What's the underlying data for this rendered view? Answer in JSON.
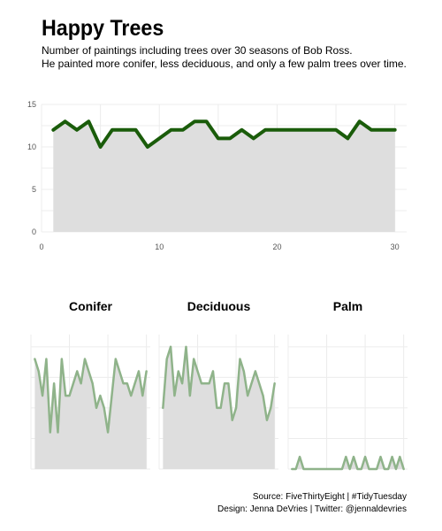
{
  "title": "Happy Trees",
  "subtitle_lines": [
    "Number of paintings including trees over 30 seasons of Bob Ross.",
    "He painted more conifer, less deciduous, and only a few palm trees over time."
  ],
  "caption_lines": [
    "Source: FiveThirtyEight | #TidyTuesday",
    "Design: Jenna DeVries | Twitter: @jennaldevries"
  ],
  "colors": {
    "main_line": "#1a5c0a",
    "facet_line": "#8fb38a",
    "area_fill": "#dedede",
    "grid": "#ececec",
    "axis_text": "#555555"
  },
  "chart_data": [
    {
      "type": "area",
      "x": [
        1,
        2,
        3,
        4,
        5,
        6,
        7,
        8,
        9,
        10,
        11,
        12,
        13,
        14,
        15,
        16,
        17,
        18,
        19,
        20,
        21,
        22,
        23,
        24,
        25,
        26,
        27,
        28,
        29,
        30
      ],
      "values": [
        12,
        13,
        12,
        13,
        10,
        12,
        12,
        12,
        10,
        11,
        12,
        12,
        13,
        13,
        11,
        11,
        12,
        11,
        12,
        12,
        12,
        12,
        12,
        12,
        12,
        11,
        13,
        12,
        12,
        12
      ],
      "xlim": [
        0,
        31
      ],
      "ylim": [
        0,
        15
      ],
      "xticks": [
        0,
        10,
        20,
        30
      ],
      "yticks": [
        0,
        5,
        10,
        15
      ],
      "grid": true
    },
    {
      "type": "area",
      "facets": [
        {
          "title": "Conifer",
          "values": [
            9,
            8,
            6,
            9,
            3,
            7,
            3,
            9,
            6,
            6,
            7,
            8,
            7,
            9,
            8,
            7,
            5,
            6,
            5,
            3,
            6,
            9,
            8,
            7,
            7,
            6,
            7,
            8,
            6,
            8
          ]
        },
        {
          "title": "Deciduous",
          "values": [
            5,
            9,
            10,
            6,
            8,
            7,
            10,
            6,
            9,
            8,
            7,
            7,
            7,
            8,
            5,
            5,
            7,
            7,
            4,
            5,
            9,
            8,
            6,
            7,
            8,
            7,
            6,
            4,
            5,
            7
          ]
        },
        {
          "title": "Palm",
          "values": [
            0,
            0,
            1,
            0,
            0,
            0,
            0,
            0,
            0,
            0,
            0,
            0,
            0,
            0,
            1,
            0,
            1,
            0,
            0,
            1,
            0,
            0,
            0,
            1,
            0,
            0,
            1,
            0,
            1,
            0
          ]
        }
      ],
      "x": [
        1,
        2,
        3,
        4,
        5,
        6,
        7,
        8,
        9,
        10,
        11,
        12,
        13,
        14,
        15,
        16,
        17,
        18,
        19,
        20,
        21,
        22,
        23,
        24,
        25,
        26,
        27,
        28,
        29,
        30
      ],
      "xlim": [
        0,
        31
      ],
      "ylim": [
        0,
        11
      ],
      "grid": true
    }
  ]
}
